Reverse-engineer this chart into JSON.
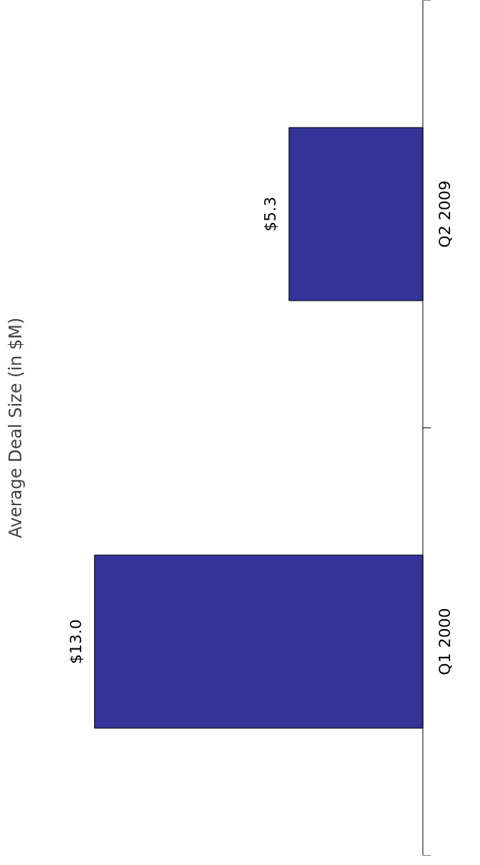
{
  "chart_data": {
    "type": "bar",
    "ylabel": "Average Deal Size (in $M)",
    "categories": [
      "Q2 2009",
      "Q1 2000"
    ],
    "values": [
      5.3,
      13.0
    ],
    "value_labels": [
      "$5.3",
      "$13.0"
    ],
    "color": "#333399",
    "orientation": "horizontal"
  }
}
